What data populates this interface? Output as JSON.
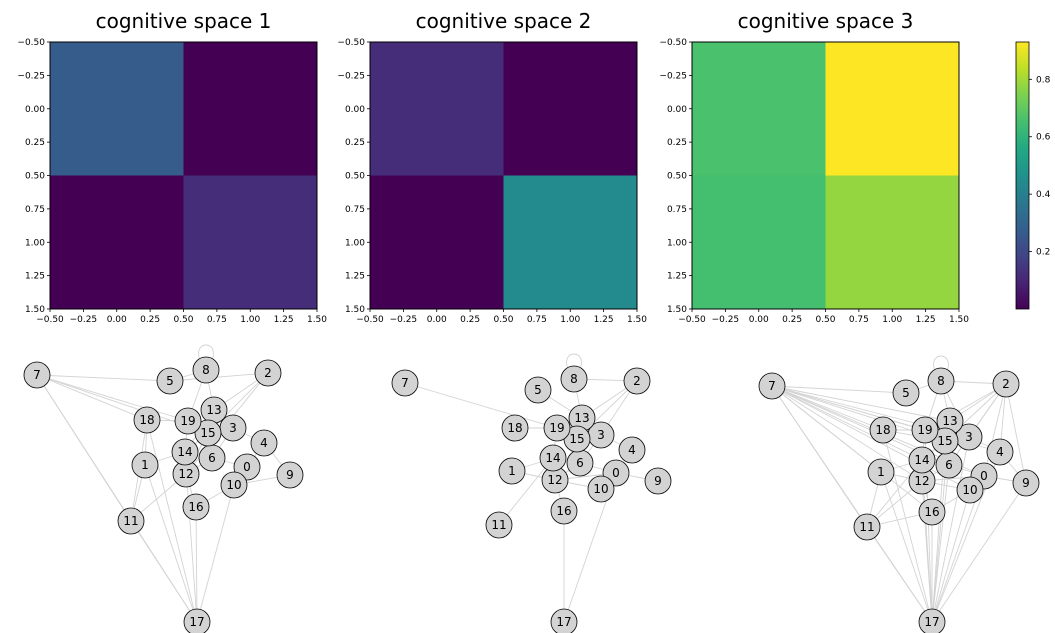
{
  "colors": {
    "edge": "#d3d3d3",
    "node_fill": "#d3d3d3",
    "node_stroke": "#000000",
    "colormap": "viridis"
  },
  "chart_data": [
    {
      "type": "heatmap",
      "title": "cognitive space 1",
      "x_ticks": [
        "−0.50",
        "−0.25",
        "0.00",
        "0.25",
        "0.50",
        "0.75",
        "1.00",
        "1.25",
        "1.50"
      ],
      "y_ticks": [
        "−0.50",
        "−0.25",
        "0.00",
        "0.25",
        "0.50",
        "0.75",
        "1.00",
        "1.25",
        "1.50"
      ],
      "xlim": [
        -0.5,
        1.5
      ],
      "ylim": [
        1.5,
        -0.5
      ],
      "values": [
        [
          0.27,
          0.0
        ],
        [
          0.0,
          0.12
        ]
      ]
    },
    {
      "type": "heatmap",
      "title": "cognitive space 2",
      "x_ticks": [
        "−0.50",
        "−0.25",
        "0.00",
        "0.25",
        "0.50",
        "0.75",
        "1.00",
        "1.25",
        "1.50"
      ],
      "y_ticks": [
        "−0.50",
        "−0.25",
        "0.00",
        "0.25",
        "0.50",
        "0.75",
        "1.00",
        "1.25",
        "1.50"
      ],
      "xlim": [
        -0.5,
        1.5
      ],
      "ylim": [
        1.5,
        -0.5
      ],
      "values": [
        [
          0.12,
          0.0
        ],
        [
          0.0,
          0.44
        ]
      ]
    },
    {
      "type": "heatmap",
      "title": "cognitive space 3",
      "x_ticks": [
        "−0.50",
        "−0.25",
        "0.00",
        "0.25",
        "0.50",
        "0.75",
        "1.00",
        "1.25",
        "1.50"
      ],
      "y_ticks": [
        "−0.50",
        "−0.25",
        "0.00",
        "0.25",
        "0.50",
        "0.75",
        "1.00",
        "1.25",
        "1.50"
      ],
      "xlim": [
        -0.5,
        1.5
      ],
      "ylim": [
        1.5,
        -0.5
      ],
      "values": [
        [
          0.66,
          0.93
        ],
        [
          0.65,
          0.78
        ]
      ]
    },
    {
      "type": "colorbar",
      "range": [
        0.0,
        0.93
      ],
      "ticks": [
        0.2,
        0.4,
        0.6,
        0.8
      ],
      "tick_labels": [
        "0.2",
        "0.4",
        "0.6",
        "0.8"
      ]
    },
    {
      "type": "network",
      "labels": [
        "0",
        "1",
        "2",
        "3",
        "4",
        "5",
        "6",
        "7",
        "8",
        "9",
        "10",
        "11",
        "12",
        "13",
        "14",
        "15",
        "16",
        "17",
        "18",
        "19"
      ],
      "edges": [
        [
          7,
          18
        ],
        [
          7,
          5
        ],
        [
          7,
          19
        ],
        [
          7,
          15
        ],
        [
          7,
          11
        ],
        [
          7,
          17
        ],
        [
          5,
          2
        ],
        [
          5,
          8
        ],
        [
          8,
          19
        ],
        [
          8,
          13
        ],
        [
          2,
          13
        ],
        [
          2,
          15
        ],
        [
          2,
          12
        ],
        [
          18,
          1
        ],
        [
          18,
          11
        ],
        [
          18,
          17
        ],
        [
          19,
          14
        ],
        [
          19,
          6
        ],
        [
          15,
          14
        ],
        [
          15,
          12
        ],
        [
          13,
          3
        ],
        [
          3,
          6
        ],
        [
          3,
          4
        ],
        [
          4,
          0
        ],
        [
          4,
          9
        ],
        [
          0,
          10
        ],
        [
          0,
          6
        ],
        [
          9,
          10
        ],
        [
          14,
          1
        ],
        [
          14,
          12
        ],
        [
          6,
          12
        ],
        [
          12,
          16
        ],
        [
          12,
          11
        ],
        [
          16,
          10
        ],
        [
          16,
          17
        ],
        [
          11,
          17
        ],
        [
          1,
          17
        ],
        [
          14,
          17
        ],
        [
          10,
          17
        ],
        [
          1,
          11
        ],
        [
          15,
          3
        ],
        [
          13,
          14
        ],
        [
          19,
          18
        ]
      ]
    },
    {
      "type": "network",
      "labels": [
        "0",
        "1",
        "2",
        "3",
        "4",
        "5",
        "6",
        "7",
        "8",
        "9",
        "10",
        "11",
        "12",
        "13",
        "14",
        "15",
        "16",
        "17",
        "18",
        "19"
      ],
      "edges": [
        [
          7,
          19
        ],
        [
          8,
          2
        ],
        [
          8,
          13
        ],
        [
          2,
          13
        ],
        [
          2,
          3
        ],
        [
          2,
          15
        ],
        [
          13,
          3
        ],
        [
          13,
          19
        ],
        [
          19,
          14
        ],
        [
          19,
          15
        ],
        [
          15,
          6
        ],
        [
          14,
          1
        ],
        [
          14,
          12
        ],
        [
          12,
          6
        ],
        [
          12,
          0
        ],
        [
          6,
          0
        ],
        [
          6,
          3
        ],
        [
          3,
          4
        ],
        [
          0,
          10
        ],
        [
          0,
          9
        ],
        [
          10,
          12
        ],
        [
          16,
          12
        ],
        [
          16,
          17
        ],
        [
          17,
          0
        ],
        [
          11,
          14
        ],
        [
          1,
          12
        ],
        [
          5,
          13
        ],
        [
          18,
          19
        ]
      ]
    },
    {
      "type": "network",
      "labels": [
        "0",
        "1",
        "2",
        "3",
        "4",
        "5",
        "6",
        "7",
        "8",
        "9",
        "10",
        "11",
        "12",
        "13",
        "14",
        "15",
        "16",
        "17",
        "18",
        "19"
      ],
      "edges": [
        [
          7,
          5
        ],
        [
          7,
          18
        ],
        [
          7,
          19
        ],
        [
          7,
          15
        ],
        [
          7,
          13
        ],
        [
          7,
          3
        ],
        [
          7,
          14
        ],
        [
          7,
          6
        ],
        [
          7,
          12
        ],
        [
          7,
          1
        ],
        [
          7,
          0
        ],
        [
          7,
          10
        ],
        [
          7,
          4
        ],
        [
          7,
          11
        ],
        [
          7,
          16
        ],
        [
          7,
          17
        ],
        [
          2,
          8
        ],
        [
          2,
          13
        ],
        [
          2,
          3
        ],
        [
          2,
          15
        ],
        [
          2,
          19
        ],
        [
          2,
          4
        ],
        [
          2,
          0
        ],
        [
          2,
          6
        ],
        [
          2,
          9
        ],
        [
          8,
          13
        ],
        [
          8,
          19
        ],
        [
          8,
          3
        ],
        [
          5,
          8
        ],
        [
          18,
          19
        ],
        [
          18,
          15
        ],
        [
          1,
          14
        ],
        [
          1,
          12
        ],
        [
          1,
          11
        ],
        [
          11,
          14
        ],
        [
          11,
          12
        ],
        [
          11,
          16
        ],
        [
          11,
          17
        ],
        [
          17,
          12
        ],
        [
          17,
          14
        ],
        [
          17,
          16
        ],
        [
          17,
          6
        ],
        [
          17,
          0
        ],
        [
          17,
          10
        ],
        [
          17,
          9
        ],
        [
          17,
          4
        ],
        [
          17,
          3
        ],
        [
          17,
          15
        ],
        [
          17,
          19
        ],
        [
          17,
          13
        ],
        [
          17,
          18
        ],
        [
          17,
          1
        ],
        [
          16,
          12
        ],
        [
          16,
          10
        ],
        [
          12,
          6
        ],
        [
          12,
          0
        ],
        [
          14,
          6
        ],
        [
          6,
          0
        ],
        [
          0,
          10
        ],
        [
          0,
          9
        ],
        [
          4,
          9
        ],
        [
          10,
          12
        ],
        [
          3,
          4
        ],
        [
          13,
          15
        ],
        [
          14,
          15
        ],
        [
          19,
          14
        ]
      ]
    }
  ]
}
